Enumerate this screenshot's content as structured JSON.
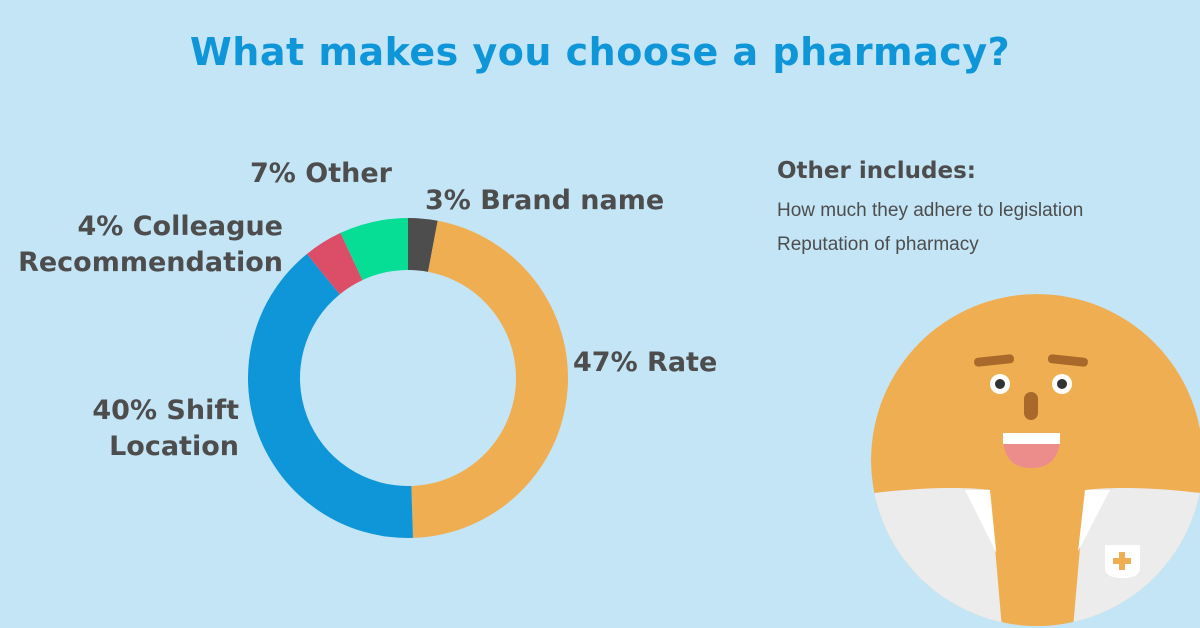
{
  "chart_data": {
    "type": "pie",
    "title": "What makes you choose a pharmacy?",
    "slices": [
      {
        "label": "Brand name",
        "value": 3,
        "color": "#4d4d4d"
      },
      {
        "label": "Rate",
        "value": 47,
        "color": "#f0ae52"
      },
      {
        "label": "Shift Location",
        "value": 40,
        "color": "#0e96d8"
      },
      {
        "label": "Colleague Recommendation",
        "value": 4,
        "color": "#dc4d68"
      },
      {
        "label": "Other",
        "value": 7,
        "color": "#06de96"
      }
    ],
    "data_labels": {
      "brand": "3% Brand name",
      "rate": "47% Rate",
      "shift_line1": "40% Shift",
      "shift_line2": "Location",
      "colleague_line1": "4% Colleague",
      "colleague_line2": "Recommendation",
      "other": "7% Other"
    }
  },
  "note": {
    "title": "Other includes:",
    "items": [
      "How much they adhere to legislation",
      "Reputation of pharmacy"
    ]
  },
  "colors": {
    "background": "#c4e5f6",
    "title": "#0e96d8",
    "text": "#4d4d4d"
  }
}
